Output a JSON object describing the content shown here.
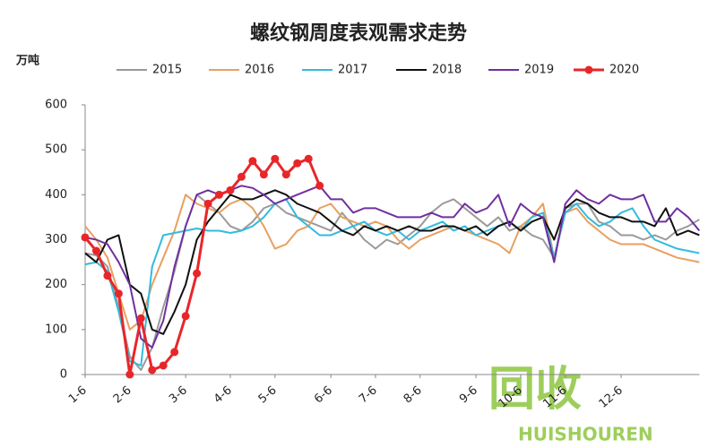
{
  "chart_data": {
    "type": "line",
    "title": "螺纹钢周度表观需求走势",
    "y_label": "万吨",
    "categories": [
      "1-6",
      null,
      null,
      null,
      "2-6",
      null,
      null,
      null,
      null,
      "3-6",
      null,
      null,
      null,
      "4-6",
      null,
      null,
      null,
      "5-6",
      null,
      null,
      null,
      null,
      "6-6",
      null,
      null,
      null,
      "7-6",
      null,
      null,
      null,
      "8-6",
      null,
      null,
      null,
      null,
      "9-6",
      null,
      null,
      null,
      "10-6",
      null,
      null,
      null,
      "11-6",
      null,
      null,
      null,
      null,
      "12-6",
      null,
      null,
      null,
      null,
      null,
      null,
      null
    ],
    "series": [
      {
        "name": "2015",
        "color": "#9a9a9a",
        "marker": false,
        "values": [
          270,
          265,
          240,
          150,
          40,
          10,
          60,
          150,
          230,
          330,
          400,
          380,
          360,
          330,
          320,
          340,
          370,
          380,
          360,
          350,
          340,
          330,
          320,
          360,
          330,
          300,
          280,
          300,
          290,
          310,
          330,
          360,
          380,
          390,
          370,
          350,
          330,
          350,
          320,
          330,
          310,
          300,
          260,
          370,
          380,
          380,
          340,
          330,
          310,
          310,
          300,
          310,
          300,
          320,
          330,
          345
        ]
      },
      {
        "name": "2016",
        "color": "#e8a060",
        "marker": false,
        "values": [
          330,
          300,
          260,
          180,
          100,
          120,
          200,
          260,
          320,
          400,
          380,
          370,
          360,
          380,
          390,
          370,
          330,
          280,
          290,
          320,
          330,
          370,
          380,
          350,
          340,
          330,
          340,
          330,
          300,
          280,
          300,
          310,
          320,
          330,
          320,
          310,
          300,
          290,
          270,
          330,
          350,
          380,
          260,
          360,
          370,
          340,
          320,
          300,
          290,
          290,
          290,
          280,
          270,
          260,
          255,
          250
        ]
      },
      {
        "name": "2017",
        "color": "#33bbdd",
        "marker": false,
        "values": [
          245,
          250,
          230,
          140,
          30,
          20,
          240,
          310,
          315,
          320,
          325,
          320,
          320,
          315,
          320,
          330,
          350,
          380,
          390,
          350,
          330,
          310,
          310,
          320,
          330,
          340,
          320,
          310,
          320,
          300,
          320,
          330,
          340,
          320,
          330,
          310,
          320,
          330,
          340,
          320,
          350,
          360,
          260,
          360,
          380,
          350,
          330,
          340,
          360,
          370,
          330,
          300,
          290,
          280,
          275,
          270
        ]
      },
      {
        "name": "2018",
        "color": "#111111",
        "marker": false,
        "values": [
          270,
          250,
          300,
          310,
          200,
          180,
          100,
          90,
          140,
          200,
          300,
          340,
          370,
          400,
          390,
          390,
          400,
          410,
          400,
          380,
          370,
          360,
          340,
          320,
          310,
          330,
          320,
          330,
          320,
          330,
          320,
          320,
          330,
          330,
          320,
          330,
          310,
          330,
          340,
          320,
          340,
          350,
          300,
          370,
          390,
          380,
          360,
          350,
          350,
          340,
          340,
          330,
          370,
          310,
          320,
          310
        ]
      },
      {
        "name": "2019",
        "color": "#7030a0",
        "marker": false,
        "values": [
          305,
          300,
          290,
          250,
          200,
          80,
          60,
          120,
          240,
          330,
          400,
          410,
          400,
          410,
          420,
          415,
          400,
          380,
          390,
          400,
          410,
          420,
          390,
          390,
          360,
          370,
          370,
          360,
          350,
          350,
          350,
          360,
          350,
          350,
          380,
          360,
          370,
          400,
          330,
          380,
          360,
          350,
          250,
          380,
          410,
          390,
          380,
          400,
          390,
          390,
          400,
          340,
          340,
          370,
          350,
          320
        ]
      },
      {
        "name": "2020",
        "color": "#e8262a",
        "marker": true,
        "values": [
          305,
          275,
          220,
          180,
          0,
          125,
          10,
          20,
          50,
          130,
          225,
          380,
          400,
          410,
          440,
          475,
          445,
          480,
          445,
          470,
          480,
          420,
          null,
          null,
          null,
          null,
          null,
          null,
          null,
          null,
          null,
          null,
          null,
          null,
          null,
          null,
          null,
          null,
          null,
          null,
          null,
          null,
          null,
          null,
          null,
          null,
          null,
          null,
          null,
          null,
          null,
          null,
          null,
          null,
          null,
          null
        ]
      }
    ],
    "ylim": [
      0,
      600
    ],
    "yticks": [
      0,
      100,
      200,
      300,
      400,
      500,
      600
    ],
    "legend": "top",
    "watermark": "回收",
    "watermark_sub": "HUISHOUREN"
  }
}
